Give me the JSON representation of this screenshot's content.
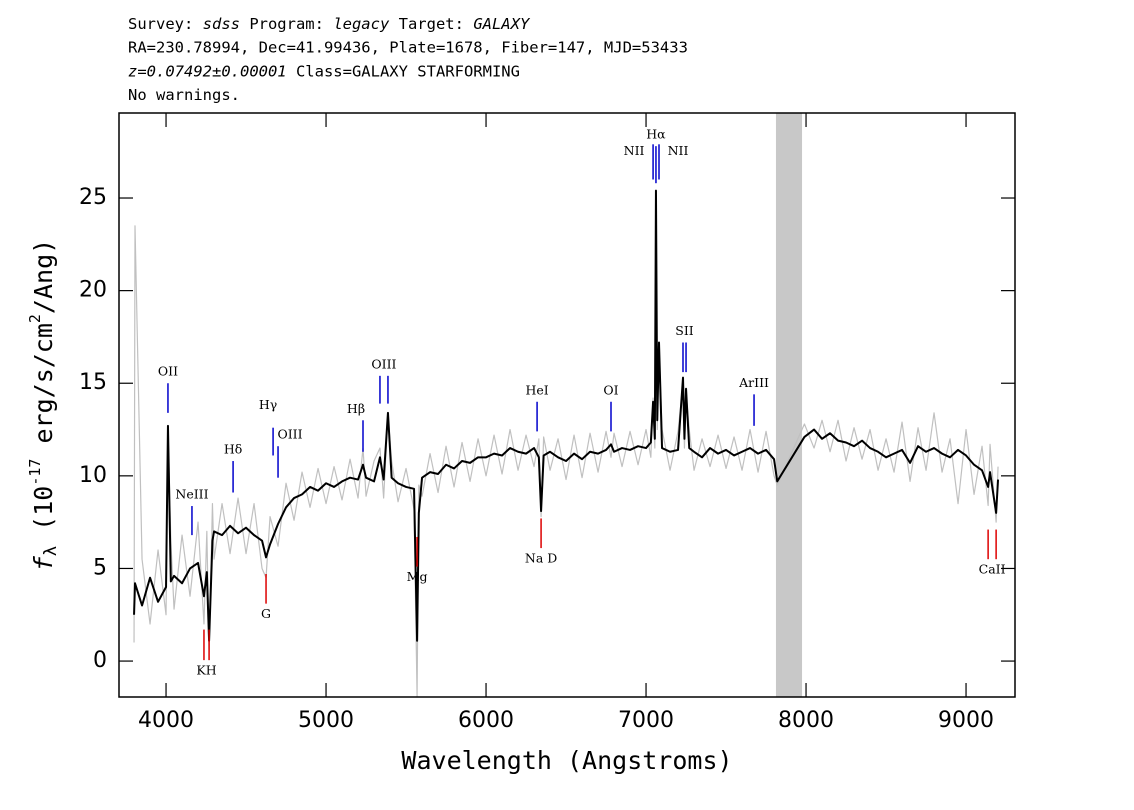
{
  "chart_data": {
    "type": "line",
    "title": [
      [
        {
          "text": "Survey: "
        },
        {
          "text": "sdss",
          "italic": true
        },
        {
          "text": " Program: "
        },
        {
          "text": "legacy",
          "italic": true
        },
        {
          "text": " Target: "
        },
        {
          "text": "GALAXY",
          "italic": true
        }
      ],
      [
        {
          "text": "RA=230.78994, Dec=41.99436, Plate=1678, Fiber=147, MJD=53433"
        }
      ],
      [
        {
          "text": "z=0.07492±0.00001",
          "italic": true
        },
        {
          "text": " Class=GALAXY STARFORMING"
        }
      ],
      [
        {
          "text": "No warnings."
        }
      ]
    ],
    "x_label": "Wavelength (Angstroms)",
    "y_label": [
      {
        "text": "f",
        "italic": true
      },
      {
        "text": "λ",
        "shift": "sub"
      },
      {
        "text": " (10"
      },
      {
        "text": "-17",
        "shift": "sup"
      },
      {
        "text": " erg/s/cm"
      },
      {
        "text": "2",
        "shift": "sup"
      },
      {
        "text": "/Ang)"
      }
    ],
    "xlim": [
      3706,
      9306
    ],
    "ylim": [
      -1.94,
      29.59
    ],
    "xticks": [
      4000,
      5000,
      6000,
      7000,
      8000,
      9000
    ],
    "yticks": [
      0,
      5,
      10,
      15,
      20,
      25
    ],
    "shaded_xrange": [
      7812,
      7975
    ],
    "shaded_color": "#c8c8c8",
    "x": [
      3800,
      3806,
      3850,
      3900,
      3950,
      4000,
      4012,
      4030,
      4050,
      4100,
      4150,
      4200,
      4237,
      4255,
      4269,
      4290,
      4300,
      4350,
      4400,
      4450,
      4500,
      4550,
      4600,
      4625,
      4650,
      4700,
      4750,
      4800,
      4850,
      4900,
      4950,
      5000,
      5050,
      5100,
      5150,
      5200,
      5231,
      5250,
      5300,
      5337,
      5360,
      5387,
      5410,
      5450,
      5500,
      5550,
      5569,
      5580,
      5600,
      5650,
      5700,
      5750,
      5800,
      5850,
      5900,
      5950,
      6000,
      6050,
      6100,
      6150,
      6200,
      6250,
      6300,
      6330,
      6344,
      6360,
      6400,
      6450,
      6500,
      6550,
      6600,
      6650,
      6700,
      6750,
      6781,
      6800,
      6850,
      6900,
      6950,
      7000,
      7030,
      7044,
      7055,
      7062,
      7070,
      7081,
      7100,
      7150,
      7200,
      7231,
      7240,
      7250,
      7270,
      7300,
      7350,
      7400,
      7450,
      7500,
      7550,
      7600,
      7650,
      7700,
      7750,
      7800,
      7820,
      7990,
      8050,
      8100,
      8150,
      8200,
      8250,
      8300,
      8350,
      8400,
      8450,
      8500,
      8550,
      8600,
      8650,
      8700,
      8750,
      8800,
      8850,
      8900,
      8950,
      9000,
      9050,
      9100,
      9138,
      9150,
      9188,
      9200
    ],
    "series": [
      {
        "color": "#c0c0c0",
        "values": [
          1.0,
          23.5,
          5.5,
          2.0,
          6.0,
          2.5,
          12.5,
          6.5,
          2.8,
          6.8,
          3.5,
          7.5,
          2.0,
          7.0,
          0.5,
          8.5,
          5.5,
          8.5,
          5.8,
          8.8,
          5.8,
          8.5,
          5.0,
          4.5,
          7.8,
          6.2,
          9.6,
          7.6,
          10.2,
          8.3,
          10.4,
          8.5,
          10.5,
          8.7,
          10.9,
          8.8,
          11.5,
          8.9,
          10.8,
          11.5,
          8.8,
          13.3,
          10.8,
          8.6,
          10.4,
          8.2,
          -1.9,
          9.5,
          8.9,
          11.2,
          9.1,
          11.6,
          9.4,
          11.8,
          9.7,
          12.0,
          10.0,
          12.2,
          10.1,
          12.5,
          10.3,
          12.2,
          10.5,
          12.0,
          7.8,
          12.1,
          10.3,
          12.0,
          9.8,
          12.2,
          9.9,
          12.3,
          10.2,
          12.4,
          11.0,
          12.3,
          10.5,
          12.4,
          10.6,
          12.5,
          11.0,
          14.2,
          11.5,
          25.2,
          12.5,
          17.0,
          12.5,
          10.3,
          12.4,
          15.0,
          11.5,
          14.5,
          12.5,
          10.3,
          12.0,
          10.5,
          12.2,
          10.4,
          12.1,
          10.3,
          12.5,
          10.2,
          12.4,
          10.0,
          9.5,
          12.8,
          11.5,
          13.0,
          11.3,
          13.0,
          10.8,
          12.6,
          10.9,
          12.5,
          10.3,
          12.0,
          10.2,
          12.9,
          9.7,
          12.6,
          10.3,
          13.4,
          10.2,
          12.0,
          8.5,
          12.5,
          9.0,
          11.6,
          8.4,
          11.7,
          7.5,
          10.5
        ]
      },
      {
        "color": "#000000",
        "values": [
          2.5,
          4.2,
          3.0,
          4.5,
          3.2,
          4.0,
          12.7,
          4.3,
          4.6,
          4.2,
          5.0,
          5.3,
          3.5,
          4.8,
          1.1,
          6.5,
          7.0,
          6.8,
          7.3,
          6.9,
          7.2,
          6.8,
          6.5,
          5.6,
          6.3,
          7.4,
          8.3,
          8.8,
          9.0,
          9.4,
          9.2,
          9.6,
          9.4,
          9.7,
          9.9,
          9.8,
          10.6,
          9.9,
          9.7,
          11.0,
          9.8,
          13.4,
          9.9,
          9.6,
          9.4,
          9.3,
          1.1,
          8.0,
          9.9,
          10.2,
          10.1,
          10.6,
          10.4,
          10.8,
          10.7,
          11.0,
          11.0,
          11.2,
          11.1,
          11.5,
          11.3,
          11.2,
          11.5,
          11.0,
          8.1,
          11.1,
          11.3,
          11.0,
          10.8,
          11.2,
          10.9,
          11.3,
          11.2,
          11.4,
          11.7,
          11.3,
          11.5,
          11.4,
          11.6,
          11.5,
          11.8,
          14.0,
          12.0,
          25.4,
          13.0,
          17.2,
          11.5,
          11.3,
          11.4,
          15.3,
          12.0,
          14.7,
          11.5,
          11.3,
          11.0,
          11.5,
          11.2,
          11.4,
          11.1,
          11.3,
          11.5,
          11.2,
          11.4,
          10.9,
          9.7,
          12.1,
          12.5,
          12.0,
          12.3,
          11.9,
          11.8,
          11.6,
          11.9,
          11.5,
          11.3,
          11.0,
          11.2,
          11.4,
          10.7,
          11.6,
          11.3,
          11.5,
          11.2,
          11.0,
          11.4,
          11.1,
          10.6,
          10.3,
          9.4,
          10.2,
          8.0,
          9.8
        ]
      }
    ],
    "line_markers": [
      {
        "label": "OII",
        "x": [
          4012
        ],
        "y": [
          13.4,
          15.0
        ],
        "color": "#0000cc"
      },
      {
        "label": "NeIII",
        "x": [
          4162
        ],
        "y": [
          6.8,
          8.37
        ],
        "color": "#0000cc"
      },
      {
        "label": "Hδ",
        "x": [
          4419
        ],
        "y": [
          9.1,
          10.8
        ],
        "color": "#0000cc"
      },
      {
        "label": "Hγ",
        "x": [
          4669
        ],
        "y": [
          11.1,
          12.6
        ],
        "color": "#0000cc"
      },
      {
        "label": "OIII",
        "x": [
          4700
        ],
        "y": [
          9.9,
          11.6
        ],
        "color": "#0000cc"
      },
      {
        "label": "Hβ",
        "x": [
          5231
        ],
        "y": [
          11.3,
          13.0
        ],
        "color": "#0000cc"
      },
      {
        "label": "OIII",
        "x": [
          5337,
          5387
        ],
        "y": [
          13.9,
          15.4
        ],
        "color": "#0000cc"
      },
      {
        "label": "HeI",
        "x": [
          6319
        ],
        "y": [
          12.4,
          14.0
        ],
        "color": "#0000cc"
      },
      {
        "label": "OI",
        "x": [
          6781
        ],
        "y": [
          12.4,
          14.0
        ],
        "color": "#0000cc"
      },
      {
        "label": "NII",
        "x": [
          7044
        ],
        "y": [
          26.0,
          27.9
        ],
        "color": "#0000cc"
      },
      {
        "label": "Hα",
        "x": [
          7062
        ],
        "y": [
          25.8,
          27.8
        ],
        "color": "#0000cc"
      },
      {
        "label": "NII",
        "x": [
          7081
        ],
        "y": [
          26.0,
          27.9
        ],
        "color": "#0000cc"
      },
      {
        "label": "SII",
        "x": [
          7231,
          7250
        ],
        "y": [
          15.6,
          17.2
        ],
        "color": "#0000cc"
      },
      {
        "label": "ArIII",
        "x": [
          7675
        ],
        "y": [
          12.7,
          14.4
        ],
        "color": "#0000cc"
      },
      {
        "label": "KH",
        "x": [
          4237,
          4269
        ],
        "y": [
          0.05,
          1.7
        ],
        "color": "#dd0000"
      },
      {
        "label": "G",
        "x": [
          4625
        ],
        "y": [
          3.1,
          4.7
        ],
        "color": "#dd0000"
      },
      {
        "label": "Mg",
        "x": [
          5569
        ],
        "y": [
          5.1,
          6.7
        ],
        "color": "#dd0000"
      },
      {
        "label": "Na D",
        "x": [
          6344
        ],
        "y": [
          6.1,
          7.7
        ],
        "color": "#dd0000"
      },
      {
        "label": "CaII",
        "x": [
          9138,
          9188
        ],
        "y": [
          5.5,
          7.1
        ],
        "color": "#dd0000"
      }
    ]
  }
}
